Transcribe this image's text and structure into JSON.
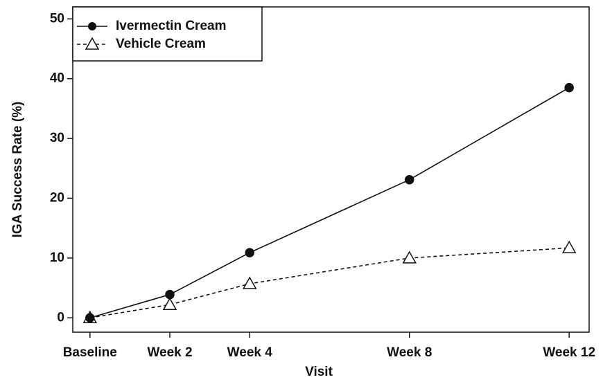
{
  "chart_data": {
    "type": "line",
    "x": [
      0,
      2,
      4,
      8,
      12
    ],
    "xticks": [
      {
        "value": 0,
        "label": "Baseline"
      },
      {
        "value": 2,
        "label": "Week 2"
      },
      {
        "value": 4,
        "label": "Week 4"
      },
      {
        "value": 8,
        "label": "Week 8"
      },
      {
        "value": 12,
        "label": "Week 12"
      }
    ],
    "xlim": [
      -0.43,
      12.5
    ],
    "ylim": [
      -2.4,
      52
    ],
    "yticks": [
      0,
      10,
      20,
      30,
      40,
      50
    ],
    "xlabel": "Visit",
    "ylabel": "IGA Success Rate (%)",
    "legend": "upper left",
    "series": [
      {
        "name": "Ivermectin Cream",
        "color": "#111111",
        "linestyle": "solid",
        "marker": "circle",
        "values": [
          0,
          3.9,
          10.9,
          23.1,
          38.5
        ]
      },
      {
        "name": "Vehicle Cream",
        "color": "#111111",
        "linestyle": "dashed",
        "marker": "triangle",
        "values": [
          0,
          2.2,
          5.7,
          10,
          11.7
        ]
      }
    ]
  }
}
